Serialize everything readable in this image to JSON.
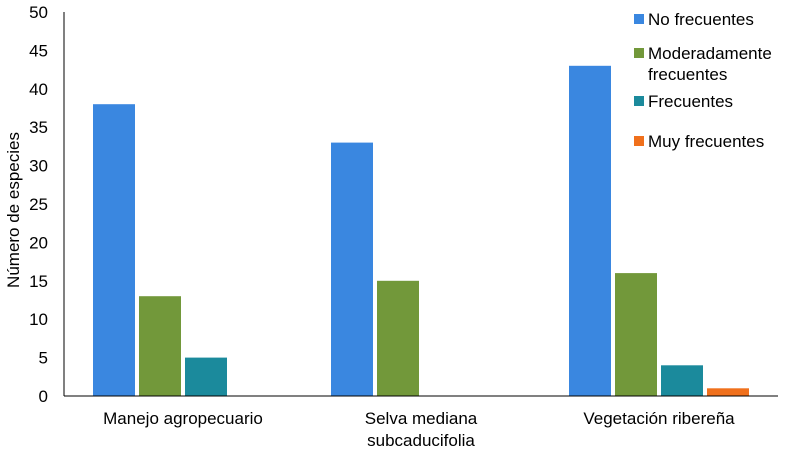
{
  "chart_data": {
    "type": "bar",
    "categories": [
      "Manejo agropecuario",
      "Selva mediana subcaducifolia",
      "Vegetación ribereña"
    ],
    "category_label_lines": [
      [
        "Manejo agropecuario"
      ],
      [
        "Selva mediana",
        "subcaducifolia"
      ],
      [
        "Vegetación ribereña"
      ]
    ],
    "series": [
      {
        "name": "No frecuentes",
        "color": "#3a87e0",
        "values": [
          38,
          33,
          43
        ]
      },
      {
        "name": "Moderadamente frecuentes",
        "legend_lines": [
          "Moderadamente",
          "frecuentes"
        ],
        "color": "#72983a",
        "values": [
          13,
          15,
          16
        ]
      },
      {
        "name": "Frecuentes",
        "color": "#1b8a9c",
        "values": [
          5,
          0,
          4
        ]
      },
      {
        "name": "Muy frecuentes",
        "color": "#f0701c",
        "values": [
          0,
          0,
          1
        ]
      }
    ],
    "ylabel": "Número de especies",
    "xlabel": "",
    "ylim": [
      0,
      50
    ],
    "yticks": [
      0,
      5,
      10,
      15,
      20,
      25,
      30,
      35,
      40,
      45,
      50
    ],
    "grid": false,
    "legend_position": "top-right"
  }
}
